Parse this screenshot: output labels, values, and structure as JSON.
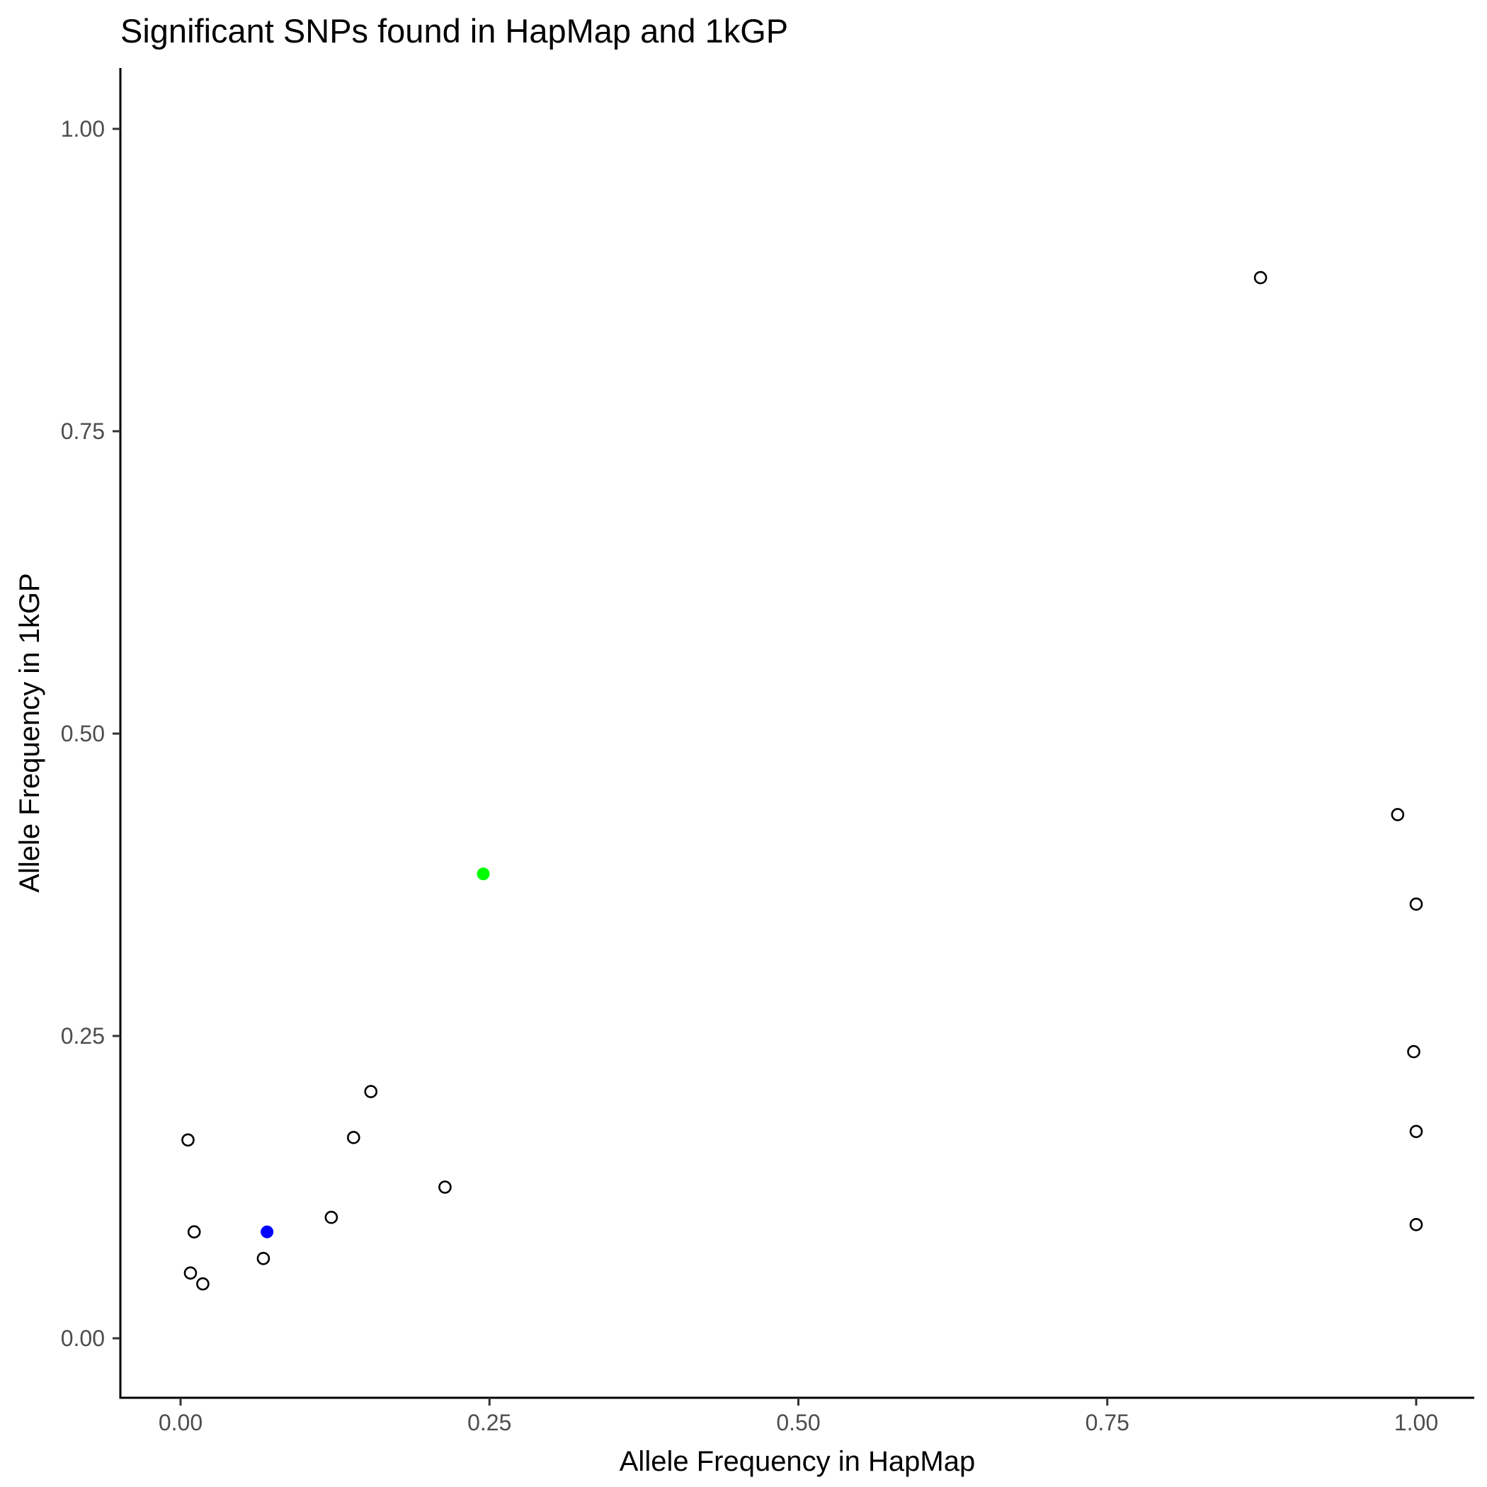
{
  "chart_data": {
    "type": "scatter",
    "title": "Significant SNPs found in HapMap and 1kGP",
    "xlabel": "Allele Frequency in HapMap",
    "ylabel": "Allele Frequency in 1kGP",
    "xlim": [
      -0.05,
      1.05
    ],
    "ylim": [
      -0.05,
      1.05
    ],
    "xticks": [
      0.0,
      0.25,
      0.5,
      0.75,
      1.0
    ],
    "xtick_labels": [
      "0.00",
      "0.25",
      "0.50",
      "0.75",
      "1.00"
    ],
    "yticks": [
      0.0,
      0.25,
      0.5,
      0.75,
      1.0
    ],
    "ytick_labels": [
      "0.00",
      "0.25",
      "0.50",
      "0.75",
      "1.00"
    ],
    "grid": false,
    "legend": "none",
    "points": [
      {
        "x": 0.006,
        "y": 0.164,
        "style": "open",
        "color": "#000000"
      },
      {
        "x": 0.011,
        "y": 0.088,
        "style": "open",
        "color": "#000000"
      },
      {
        "x": 0.008,
        "y": 0.054,
        "style": "open",
        "color": "#000000"
      },
      {
        "x": 0.018,
        "y": 0.045,
        "style": "open",
        "color": "#000000"
      },
      {
        "x": 0.067,
        "y": 0.066,
        "style": "open",
        "color": "#000000"
      },
      {
        "x": 0.07,
        "y": 0.088,
        "style": "filled",
        "color": "#0000ff"
      },
      {
        "x": 0.122,
        "y": 0.1,
        "style": "open",
        "color": "#000000"
      },
      {
        "x": 0.14,
        "y": 0.166,
        "style": "open",
        "color": "#000000"
      },
      {
        "x": 0.154,
        "y": 0.204,
        "style": "open",
        "color": "#000000"
      },
      {
        "x": 0.214,
        "y": 0.125,
        "style": "open",
        "color": "#000000"
      },
      {
        "x": 0.245,
        "y": 0.384,
        "style": "filled",
        "color": "#00ff00"
      },
      {
        "x": 0.874,
        "y": 0.877,
        "style": "open",
        "color": "#000000"
      },
      {
        "x": 0.985,
        "y": 0.433,
        "style": "open",
        "color": "#000000"
      },
      {
        "x": 1.0,
        "y": 0.359,
        "style": "open",
        "color": "#000000"
      },
      {
        "x": 0.998,
        "y": 0.237,
        "style": "open",
        "color": "#000000"
      },
      {
        "x": 1.0,
        "y": 0.171,
        "style": "open",
        "color": "#000000"
      },
      {
        "x": 1.0,
        "y": 0.094,
        "style": "open",
        "color": "#000000"
      }
    ]
  }
}
